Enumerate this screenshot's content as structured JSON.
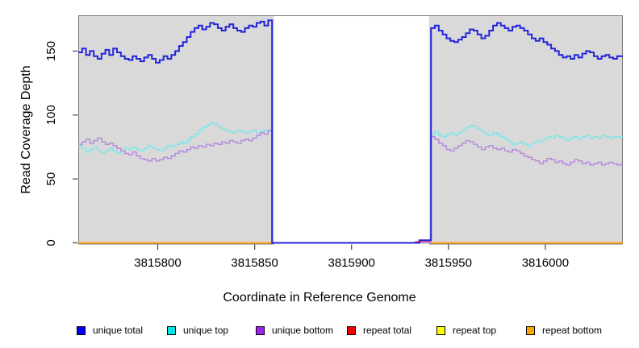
{
  "chart_data": {
    "type": "line",
    "subtype": "step-coverage-plot",
    "title": "",
    "xlabel": "Coordinate in Reference Genome",
    "ylabel": "Read Coverage Depth",
    "xlim": [
      3815759,
      3816040
    ],
    "ylim": [
      0,
      178
    ],
    "grid": false,
    "legend_position": "bottom",
    "background_color": "#FFFFFF",
    "plot_bg_color": "#D9D9D9",
    "border_color": "#777777",
    "tick_color": "#444444",
    "masked_region": {
      "x_start": 3815860,
      "x_end": 3815940,
      "fill": "#FFFFFF"
    },
    "x_ticks": {
      "values": [
        3815800,
        3815850,
        3815900,
        3815950,
        3816000
      ],
      "labels": [
        "3815800",
        "3815850",
        "3815900",
        "3815950",
        "3816000"
      ]
    },
    "y_ticks": {
      "values": [
        0,
        50,
        100,
        150
      ],
      "labels": [
        "0",
        "50",
        "100",
        "150"
      ]
    },
    "series": [
      {
        "name": "unique total",
        "color": "#2323DC",
        "legend_fill": "#0000EE",
        "line_width": 2,
        "z": 5,
        "segments": [
          {
            "x_start": 3815759,
            "x_step": 2,
            "values": [
              149,
              152,
              147,
              150,
              146,
              144,
              148,
              151,
              147,
              152,
              149,
              146,
              144,
              143,
              146,
              144,
              142,
              145,
              147,
              144,
              141,
              143,
              146,
              144,
              147,
              150,
              154,
              157,
              161,
              165,
              168,
              170,
              167,
              169,
              172,
              171,
              168,
              166,
              169,
              171,
              168,
              166,
              165,
              168,
              170,
              169,
              172,
              173,
              170,
              174,
              0,
              0,
              0,
              0,
              0,
              0,
              0,
              0,
              0,
              0,
              0,
              0,
              0,
              0,
              0,
              0,
              0,
              0,
              0,
              0,
              0,
              0,
              0,
              0,
              0,
              0,
              0,
              0,
              0,
              0,
              0,
              0,
              0,
              0,
              0,
              0,
              0,
              0,
              2,
              2,
              2,
              168,
              170,
              166,
              163,
              160,
              158,
              157,
              159,
              161,
              164,
              167,
              166,
              163,
              160,
              162,
              166,
              170,
              172,
              170,
              168,
              166,
              169,
              170,
              168,
              166,
              163,
              160,
              158,
              160,
              157,
              155,
              152,
              150,
              147,
              145,
              146,
              144,
              147,
              145,
              148,
              150,
              149,
              146,
              144,
              146,
              147,
              145,
              144,
              146,
              146
            ]
          }
        ]
      },
      {
        "name": "unique top",
        "color": "#7FE6E8",
        "legend_fill": "#00E5E5",
        "line_width": 1.5,
        "z": 3,
        "segments": [
          {
            "x_start": 3815759,
            "x_step": 2,
            "values": [
              76,
              74,
              71,
              73,
              75,
              72,
              70,
              72,
              74,
              72,
              70,
              72,
              74,
              73,
              75,
              73,
              72,
              74,
              76,
              74,
              73,
              72,
              74,
              76,
              75,
              77,
              79,
              78,
              80,
              83,
              85,
              88,
              90,
              92,
              94,
              93,
              91,
              89,
              88,
              87,
              86,
              88,
              87,
              86,
              87,
              88,
              86,
              87,
              88,
              87,
              0,
              0,
              0,
              0,
              0,
              0,
              0,
              0,
              0,
              0,
              0,
              0,
              0,
              0,
              0,
              0,
              0,
              0,
              0,
              0,
              0,
              0,
              0,
              0,
              0,
              0,
              0,
              0,
              0,
              0,
              0,
              0,
              0,
              0,
              0,
              0,
              0,
              0,
              0,
              0,
              0,
              85,
              87,
              84,
              83,
              85,
              86,
              84,
              86,
              88,
              90,
              92,
              91,
              89,
              87,
              85,
              84,
              86,
              85,
              83,
              81,
              79,
              77,
              78,
              79,
              77,
              76,
              78,
              80,
              79,
              81,
              83,
              82,
              84,
              83,
              82,
              80,
              82,
              83,
              81,
              83,
              84,
              82,
              83,
              82,
              84,
              83,
              82,
              83,
              83,
              83
            ]
          }
        ]
      },
      {
        "name": "unique bottom",
        "color": "#B78CDE",
        "legend_fill": "#A020F0",
        "line_width": 1.5,
        "z": 4,
        "segments": [
          {
            "x_start": 3815759,
            "x_step": 2,
            "values": [
              77,
              79,
              81,
              78,
              80,
              82,
              79,
              77,
              78,
              76,
              74,
              72,
              70,
              69,
              71,
              68,
              66,
              65,
              64,
              66,
              64,
              65,
              67,
              66,
              68,
              70,
              72,
              71,
              73,
              75,
              74,
              76,
              75,
              77,
              76,
              78,
              77,
              79,
              78,
              80,
              79,
              78,
              80,
              81,
              80,
              82,
              84,
              86,
              85,
              88,
              0,
              0,
              0,
              0,
              0,
              0,
              0,
              0,
              0,
              0,
              0,
              0,
              0,
              0,
              0,
              0,
              0,
              0,
              0,
              0,
              0,
              0,
              0,
              0,
              0,
              0,
              0,
              0,
              0,
              0,
              0,
              0,
              0,
              0,
              0,
              0,
              0,
              0,
              0,
              0,
              0,
              83,
              81,
              78,
              76,
              73,
              72,
              74,
              76,
              78,
              80,
              79,
              77,
              75,
              73,
              75,
              76,
              74,
              73,
              74,
              72,
              71,
              73,
              72,
              70,
              68,
              67,
              65,
              64,
              62,
              64,
              66,
              65,
              63,
              64,
              62,
              61,
              63,
              65,
              64,
              62,
              63,
              61,
              62,
              63,
              61,
              62,
              63,
              62,
              61,
              62
            ]
          }
        ]
      },
      {
        "name": "repeat total",
        "color": "#EE4455",
        "legend_fill": "#EE0000",
        "line_width": 1.5,
        "z": 0,
        "segments": [
          {
            "steps": [
              [
                3815759,
                0
              ],
              [
                3815933,
                1
              ],
              [
                3815941,
                0
              ],
              [
                3816040,
                0
              ]
            ]
          }
        ]
      },
      {
        "name": "repeat top",
        "color": "#F5F533",
        "legend_fill": "#FFFF00",
        "line_width": 1.5,
        "z": 1,
        "segments": [
          {
            "steps": [
              [
                3815759,
                0
              ],
              [
                3815860,
                0
              ]
            ]
          },
          {
            "steps": [
              [
                3815940,
                0
              ],
              [
                3816040,
                0
              ]
            ]
          }
        ]
      },
      {
        "name": "repeat bottom",
        "color": "#FFA41E",
        "legend_fill": "#FFA500",
        "line_width": 2,
        "z": 2,
        "segments": [
          {
            "steps": [
              [
                3815759,
                0
              ],
              [
                3815860,
                0
              ]
            ]
          },
          {
            "steps": [
              [
                3815940,
                0
              ],
              [
                3816040,
                0
              ]
            ]
          }
        ]
      }
    ],
    "legend_item_x": [
      95,
      207,
      317,
      430,
      541,
      652
    ]
  }
}
